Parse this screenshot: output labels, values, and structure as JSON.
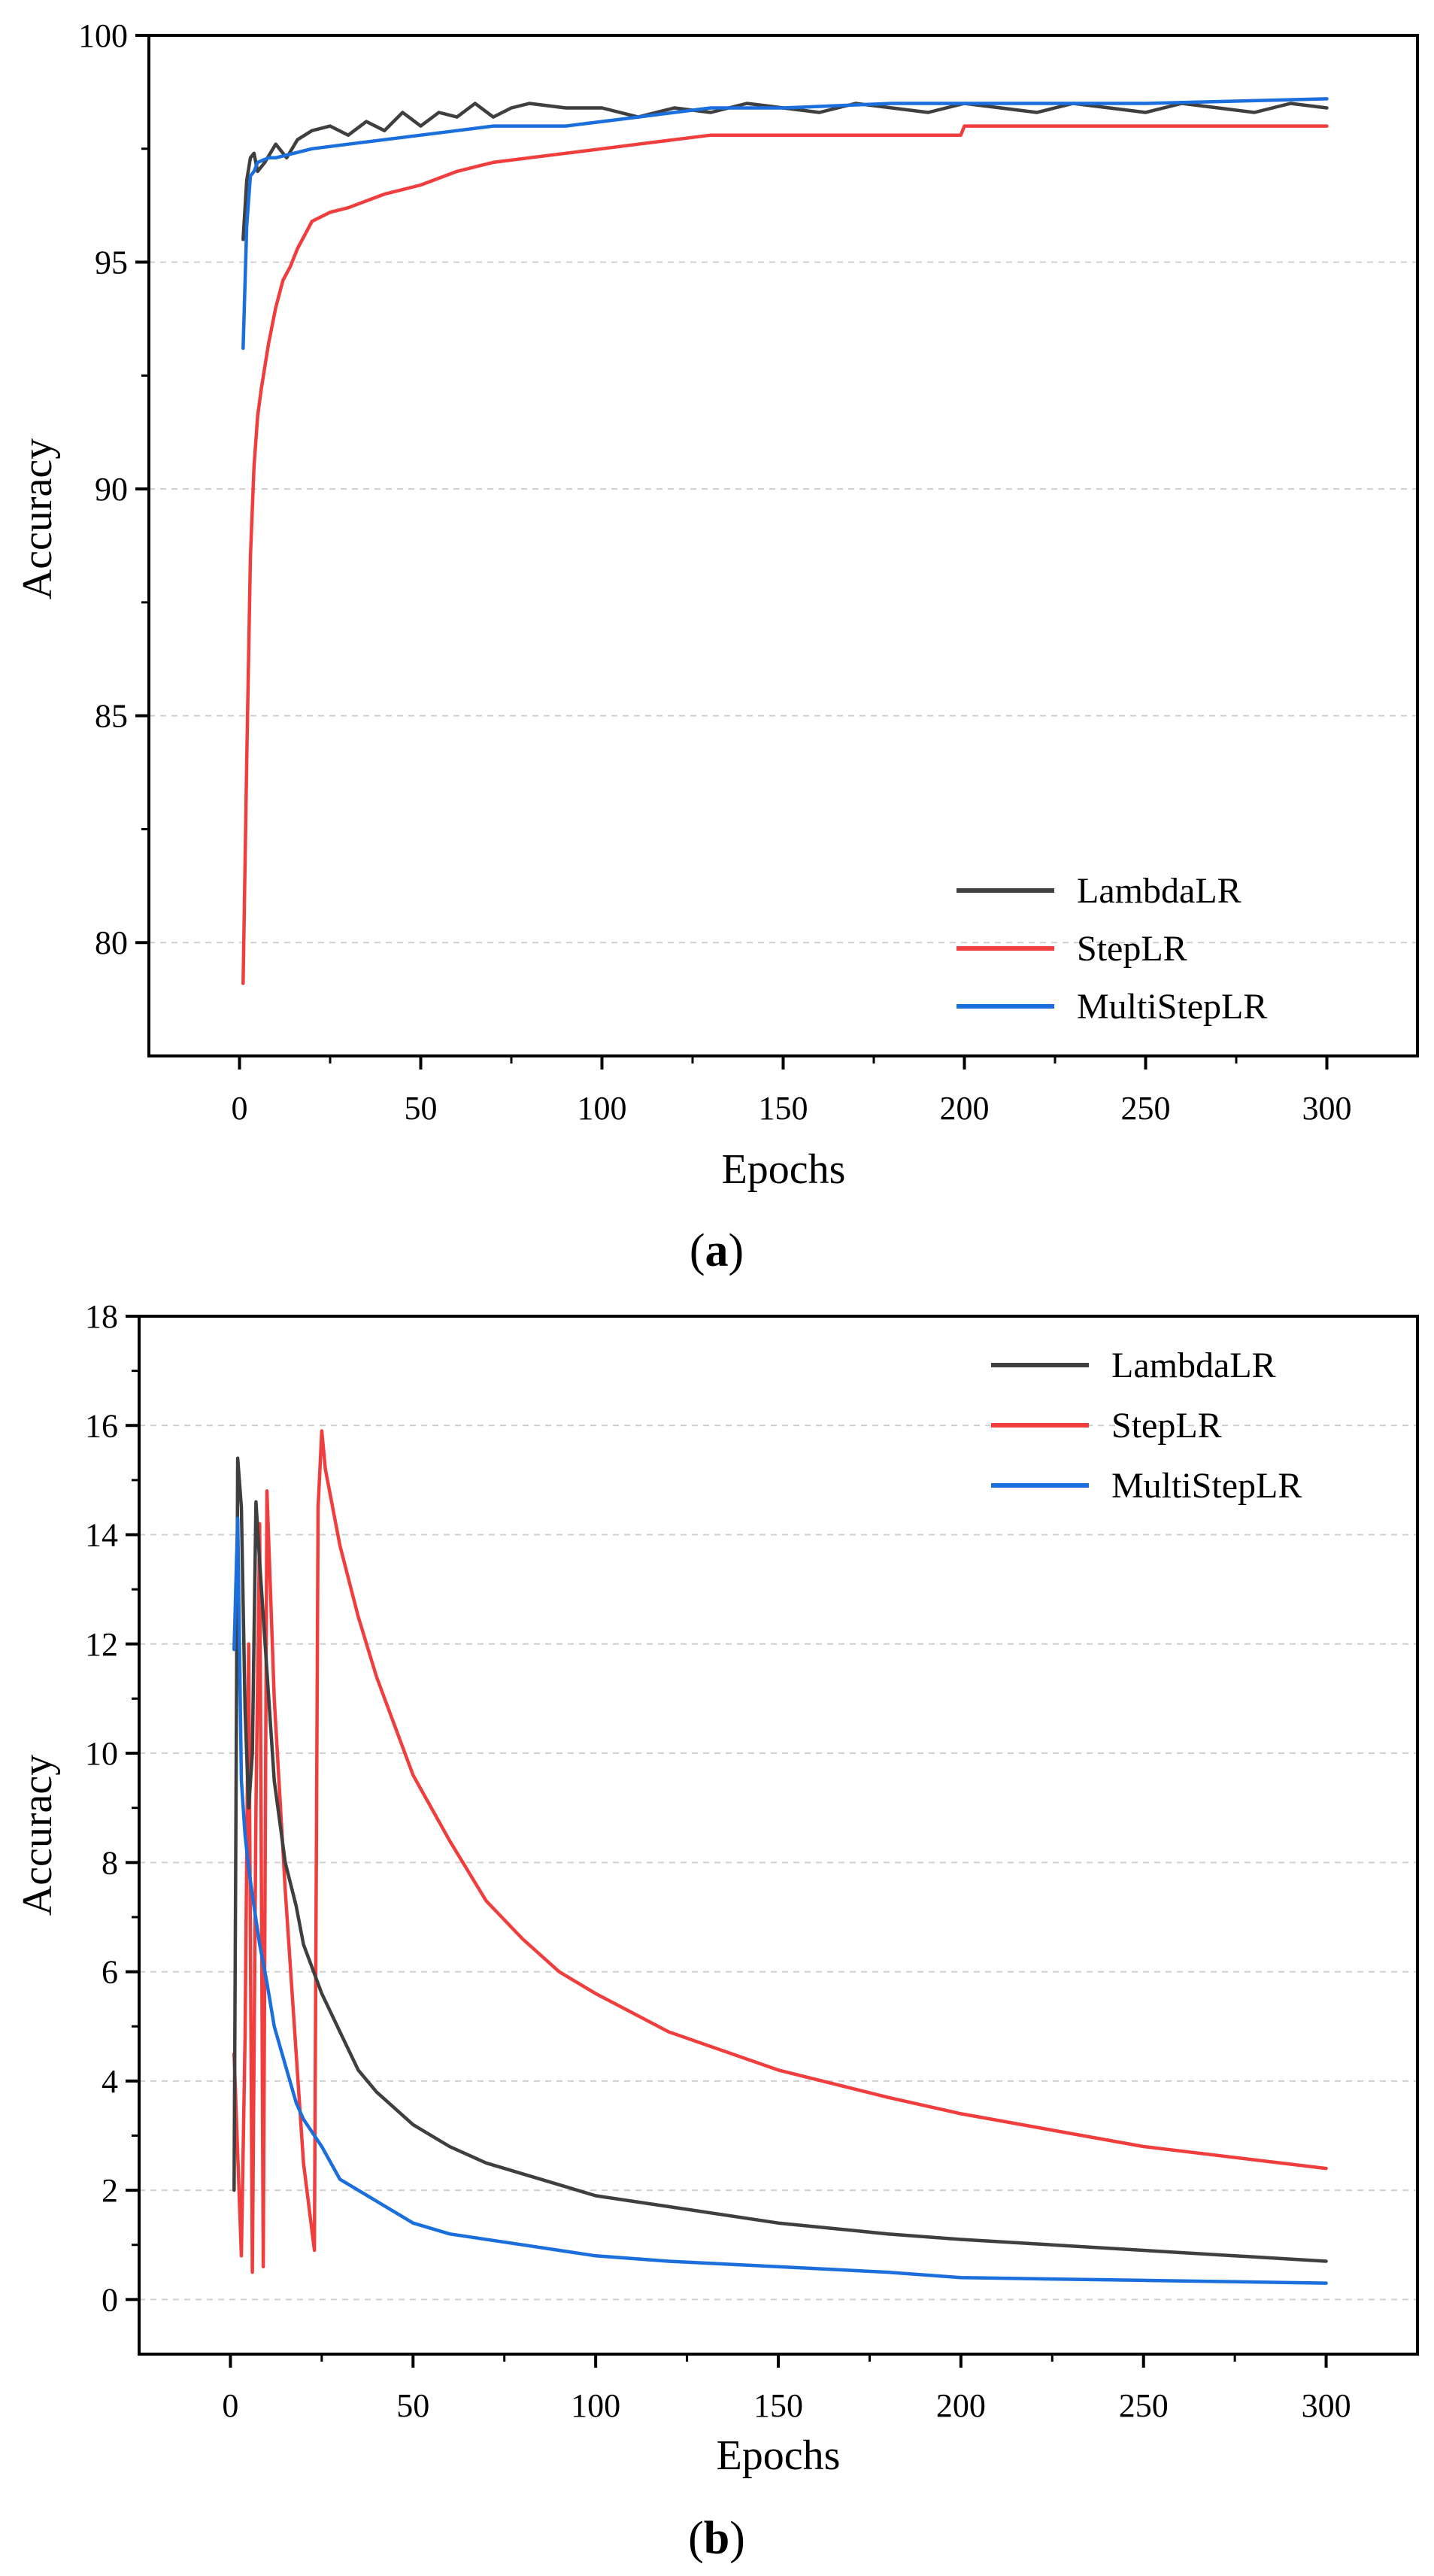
{
  "chart_data": [
    {
      "type": "line",
      "panel": "a",
      "caption": {
        "open": "(",
        "letter": "a",
        "close": ")"
      },
      "xlabel": "Epochs",
      "ylabel": "Accuracy",
      "xlim": [
        -25,
        325
      ],
      "ylim": [
        77.5,
        100
      ],
      "xticks": [
        0,
        50,
        100,
        150,
        200,
        250,
        300
      ],
      "yticks": [
        80,
        85,
        90,
        95,
        100
      ],
      "xtick_labels": [
        "0",
        "50",
        "100",
        "150",
        "200",
        "250",
        "300"
      ],
      "ytick_labels": [
        "80",
        "85",
        "90",
        "95",
        "100"
      ],
      "grid": true,
      "legend_position": "bottom-right",
      "series": [
        {
          "name": "LambdaLR",
          "color": "#3f3f3f",
          "x": [
            1,
            2,
            3,
            4,
            5,
            7,
            10,
            13,
            16,
            20,
            25,
            30,
            35,
            40,
            45,
            50,
            55,
            60,
            65,
            70,
            75,
            80,
            90,
            100,
            110,
            120,
            130,
            140,
            150,
            160,
            170,
            180,
            190,
            200,
            210,
            220,
            230,
            240,
            250,
            260,
            270,
            280,
            290,
            300
          ],
          "values": [
            95.5,
            96.8,
            97.3,
            97.4,
            97.0,
            97.2,
            97.6,
            97.3,
            97.7,
            97.9,
            98.0,
            97.8,
            98.1,
            97.9,
            98.3,
            98.0,
            98.3,
            98.2,
            98.5,
            98.2,
            98.4,
            98.5,
            98.4,
            98.4,
            98.2,
            98.4,
            98.3,
            98.5,
            98.4,
            98.3,
            98.5,
            98.4,
            98.3,
            98.5,
            98.4,
            98.3,
            98.5,
            98.4,
            98.3,
            98.5,
            98.4,
            98.3,
            98.5,
            98.4
          ]
        },
        {
          "name": "StepLR",
          "color": "#f03e3e",
          "x": [
            1,
            2,
            3,
            4,
            5,
            6,
            8,
            10,
            12,
            14,
            16,
            18,
            20,
            25,
            30,
            40,
            50,
            60,
            70,
            80,
            90,
            100,
            110,
            120,
            130,
            150,
            180,
            199,
            200,
            210,
            220,
            250,
            280,
            300
          ],
          "values": [
            79.1,
            84.0,
            88.5,
            90.5,
            91.6,
            92.2,
            93.2,
            94.0,
            94.6,
            94.9,
            95.3,
            95.6,
            95.9,
            96.1,
            96.2,
            96.5,
            96.7,
            97.0,
            97.2,
            97.3,
            97.4,
            97.5,
            97.6,
            97.7,
            97.8,
            97.8,
            97.8,
            97.8,
            98.0,
            98.0,
            98.0,
            98.0,
            98.0,
            98.0
          ]
        },
        {
          "name": "MultiStepLR",
          "color": "#1a6fdc",
          "x": [
            1,
            2,
            3,
            4,
            5,
            8,
            10,
            15,
            20,
            30,
            40,
            50,
            60,
            70,
            80,
            90,
            100,
            110,
            120,
            130,
            150,
            180,
            200,
            250,
            300
          ],
          "values": [
            93.1,
            95.8,
            96.9,
            97.0,
            97.2,
            97.3,
            97.3,
            97.4,
            97.5,
            97.6,
            97.7,
            97.8,
            97.9,
            98.0,
            98.0,
            98.0,
            98.1,
            98.2,
            98.3,
            98.4,
            98.4,
            98.5,
            98.5,
            98.5,
            98.6
          ]
        }
      ]
    },
    {
      "type": "line",
      "panel": "b",
      "caption": {
        "open": "(",
        "letter": "b",
        "close": ")"
      },
      "xlabel": "Epochs",
      "ylabel": "Accuracy",
      "xlim": [
        -25,
        325
      ],
      "ylim": [
        -1,
        18
      ],
      "xticks": [
        0,
        50,
        100,
        150,
        200,
        250,
        300
      ],
      "yticks": [
        0,
        2,
        4,
        6,
        8,
        10,
        12,
        14,
        16,
        18
      ],
      "xtick_labels": [
        "0",
        "50",
        "100",
        "150",
        "200",
        "250",
        "300"
      ],
      "ytick_labels": [
        "0",
        "2",
        "4",
        "6",
        "8",
        "10",
        "12",
        "14",
        "16",
        "18"
      ],
      "grid": true,
      "legend_position": "top-right",
      "series": [
        {
          "name": "LambdaLR",
          "color": "#3f3f3f",
          "x": [
            1,
            2,
            3,
            4,
            5,
            6,
            7,
            8,
            10,
            12,
            15,
            18,
            20,
            25,
            30,
            35,
            40,
            50,
            60,
            70,
            80,
            90,
            100,
            120,
            150,
            180,
            200,
            250,
            300
          ],
          "values": [
            2.0,
            15.4,
            14.5,
            10.8,
            9.0,
            10.0,
            14.6,
            13.5,
            11.5,
            9.5,
            8.0,
            7.2,
            6.5,
            5.6,
            4.9,
            4.2,
            3.8,
            3.2,
            2.8,
            2.5,
            2.3,
            2.1,
            1.9,
            1.7,
            1.4,
            1.2,
            1.1,
            0.9,
            0.7
          ]
        },
        {
          "name": "StepLR",
          "color": "#f03e3e",
          "x": [
            1,
            3,
            4,
            5,
            6,
            7,
            8,
            9,
            10,
            12,
            15,
            20,
            23,
            24,
            25,
            26,
            30,
            35,
            40,
            50,
            60,
            70,
            80,
            90,
            100,
            120,
            150,
            180,
            200,
            250,
            300
          ],
          "values": [
            4.5,
            0.8,
            4.8,
            12.0,
            0.5,
            9.0,
            14.2,
            0.6,
            14.8,
            11.0,
            7.5,
            2.5,
            0.9,
            14.5,
            15.9,
            15.2,
            13.8,
            12.5,
            11.4,
            9.6,
            8.4,
            7.3,
            6.6,
            6.0,
            5.6,
            4.9,
            4.2,
            3.7,
            3.4,
            2.8,
            2.4
          ]
        },
        {
          "name": "MultiStepLR",
          "color": "#1a6fdc",
          "x": [
            1,
            2,
            3,
            4,
            5,
            6,
            8,
            10,
            12,
            15,
            18,
            20,
            25,
            30,
            40,
            50,
            60,
            80,
            100,
            120,
            150,
            180,
            200,
            250,
            300
          ],
          "values": [
            11.9,
            14.3,
            9.5,
            8.5,
            7.9,
            7.4,
            6.5,
            5.8,
            5.0,
            4.3,
            3.6,
            3.3,
            2.8,
            2.2,
            1.8,
            1.4,
            1.2,
            1.0,
            0.8,
            0.7,
            0.6,
            0.5,
            0.4,
            0.35,
            0.3
          ]
        }
      ]
    }
  ]
}
